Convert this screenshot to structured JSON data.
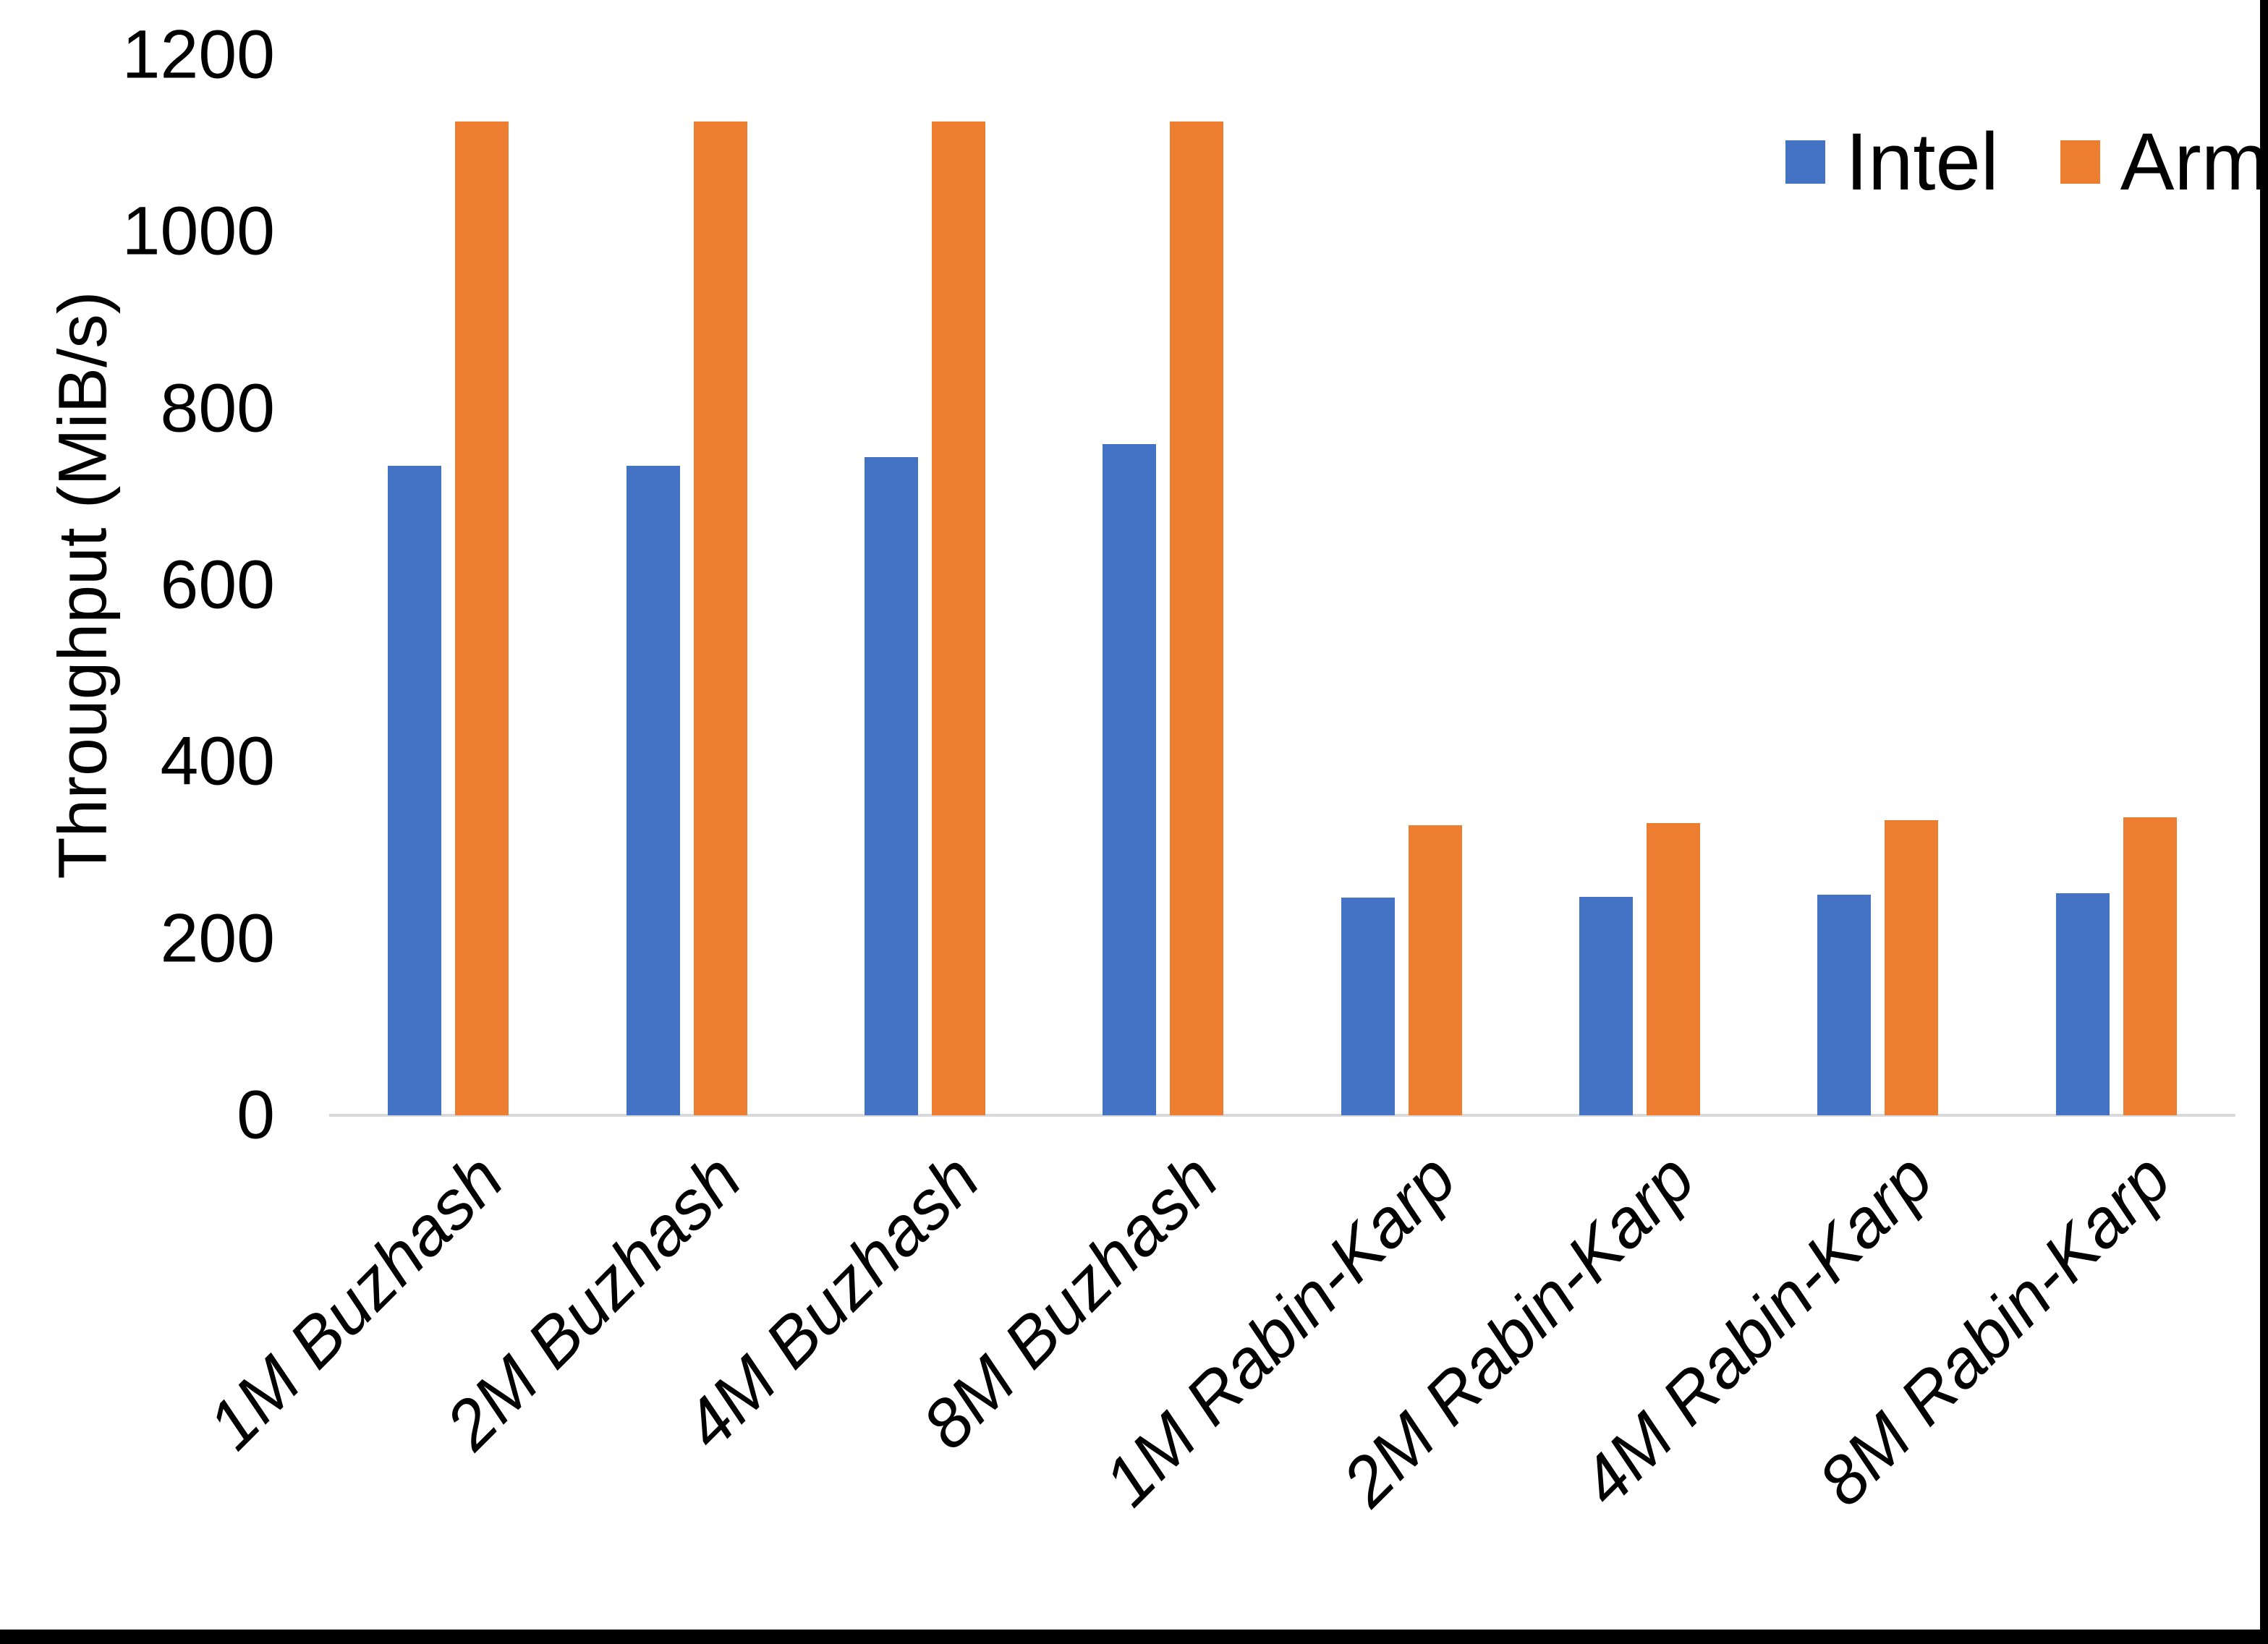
{
  "chart_data": {
    "type": "bar",
    "title": "",
    "categories": [
      "1M Buzhash",
      "2M Buzhash",
      "4M Buzhash",
      "8M Buzhash",
      "1M Rabin-Karp",
      "2M Rabin-Karp",
      "4M Rabin-Karp",
      "8M Rabin-Karp"
    ],
    "series": [
      {
        "name": "Intel",
        "color": "#4472C4",
        "values": [
          735,
          735,
          745,
          760,
          246,
          247,
          250,
          251
        ]
      },
      {
        "name": "Arm",
        "color": "#ED7D31",
        "values": [
          1125,
          1125,
          1125,
          1125,
          328,
          331,
          334,
          337
        ]
      }
    ],
    "xlabel": "",
    "ylabel": "Throughput (MiB/s)",
    "ylim": [
      0,
      1200
    ],
    "ytick_step": 200,
    "yticks": [
      0,
      200,
      400,
      600,
      800,
      1000,
      1200
    ],
    "grid": false,
    "legend_position": "top-right"
  },
  "legend": {
    "intel_label": "Intel",
    "arm_label": "Arm"
  },
  "colors": {
    "intel": "#4472C4",
    "arm": "#ED7D31",
    "axis_line": "#D9D9D9",
    "text": "#000000",
    "frame": "#000000"
  }
}
